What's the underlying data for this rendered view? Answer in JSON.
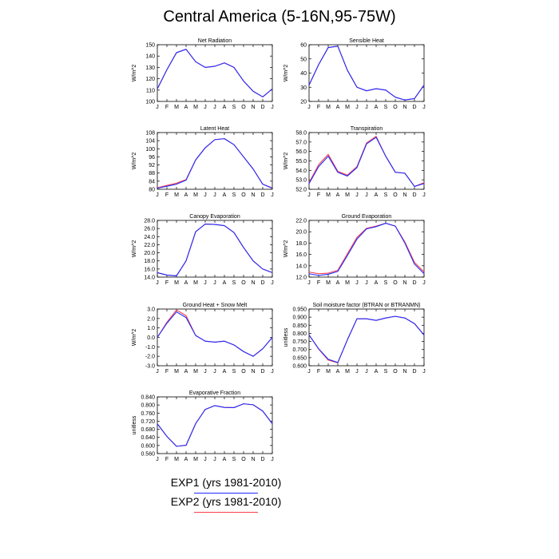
{
  "title": "Central America (5-16N,95-75W)",
  "legend": [
    {
      "label": "EXP1 (yrs 1981-2010)",
      "color": "#1e2bff"
    },
    {
      "label": "EXP2 (yrs 1981-2010)",
      "color": "#ff3a4a"
    }
  ],
  "chart_data": [
    {
      "type": "line",
      "title": "Net Radiation",
      "ylabel": "W/m^2",
      "categories": [
        "J",
        "F",
        "M",
        "A",
        "M",
        "J",
        "J",
        "A",
        "S",
        "O",
        "N",
        "D",
        "J"
      ],
      "yticks": [
        "100",
        "110",
        "120",
        "130",
        "140",
        "150"
      ],
      "ylim": [
        100,
        150
      ],
      "series": [
        {
          "name": "EXP1 (yrs 1981-2010)",
          "values": [
            111,
            128,
            143,
            146,
            135,
            130,
            131,
            134,
            130,
            118,
            109,
            104,
            111
          ]
        },
        {
          "name": "EXP2 (yrs 1981-2010)",
          "values": [
            111,
            128,
            143,
            146,
            135,
            130,
            131,
            134,
            130,
            118,
            109,
            104,
            111
          ]
        }
      ]
    },
    {
      "type": "line",
      "title": "Sensible Heat",
      "ylabel": "W/m^2",
      "categories": [
        "J",
        "F",
        "M",
        "A",
        "M",
        "J",
        "J",
        "A",
        "S",
        "O",
        "N",
        "D",
        "J"
      ],
      "yticks": [
        "20",
        "30",
        "40",
        "50",
        "60"
      ],
      "ylim": [
        20,
        60
      ],
      "series": [
        {
          "name": "EXP1 (yrs 1981-2010)",
          "values": [
            31.5,
            46,
            58,
            59,
            42,
            30,
            27.5,
            29,
            28,
            23,
            21,
            22,
            31.5
          ]
        },
        {
          "name": "EXP2 (yrs 1981-2010)",
          "values": [
            31.5,
            46,
            58,
            59,
            42,
            30,
            27.5,
            29,
            28,
            23,
            21,
            22,
            31.5
          ]
        }
      ]
    },
    {
      "type": "line",
      "title": "Latent Heat",
      "ylabel": "W/m^2",
      "categories": [
        "J",
        "F",
        "M",
        "A",
        "M",
        "J",
        "J",
        "A",
        "S",
        "O",
        "N",
        "D",
        "J"
      ],
      "yticks": [
        "80",
        "84",
        "88",
        "92",
        "96",
        "100",
        "104",
        "108"
      ],
      "ylim": [
        80,
        108
      ],
      "series": [
        {
          "name": "EXP1 (yrs 1981-2010)",
          "values": [
            80.5,
            81.5,
            82.5,
            84.5,
            94.5,
            100.5,
            104.5,
            105,
            102,
            96,
            90,
            82.5,
            80.5
          ]
        },
        {
          "name": "EXP2 (yrs 1981-2010)",
          "values": [
            80.7,
            81.9,
            83,
            84.8,
            94.5,
            100.5,
            104.5,
            105,
            102,
            96,
            90,
            82.5,
            80.7
          ]
        }
      ]
    },
    {
      "type": "line",
      "title": "Transpiration",
      "ylabel": "W/m^2",
      "categories": [
        "J",
        "F",
        "M",
        "A",
        "M",
        "J",
        "J",
        "A",
        "S",
        "O",
        "N",
        "D",
        "J"
      ],
      "yticks": [
        "52.0",
        "53.0",
        "54.0",
        "55.0",
        "56.0",
        "57.0",
        "58.0"
      ],
      "ylim": [
        52,
        58
      ],
      "series": [
        {
          "name": "EXP1 (yrs 1981-2010)",
          "values": [
            52.6,
            54.4,
            55.5,
            53.8,
            53.4,
            54.3,
            56.8,
            57.5,
            55.5,
            53.8,
            53.7,
            52.3,
            52.6
          ]
        },
        {
          "name": "EXP2 (yrs 1981-2010)",
          "values": [
            52.7,
            54.6,
            55.7,
            53.9,
            53.5,
            54.4,
            56.9,
            57.6,
            55.5,
            53.8,
            53.7,
            52.3,
            52.7
          ]
        }
      ]
    },
    {
      "type": "line",
      "title": "Canopy Evaporation",
      "ylabel": "W/m^2",
      "categories": [
        "J",
        "F",
        "M",
        "A",
        "M",
        "J",
        "J",
        "A",
        "S",
        "O",
        "N",
        "D",
        "J"
      ],
      "yticks": [
        "14.0",
        "16.0",
        "18.0",
        "20.0",
        "22.0",
        "24.0",
        "26.0",
        "28.0"
      ],
      "ylim": [
        14,
        28
      ],
      "series": [
        {
          "name": "EXP1 (yrs 1981-2010)",
          "values": [
            15.1,
            14.5,
            14.3,
            18.0,
            25.2,
            27.1,
            27.0,
            26.7,
            25.0,
            21.3,
            18.0,
            16.0,
            15.1
          ]
        },
        {
          "name": "EXP2 (yrs 1981-2010)",
          "values": [
            15.1,
            14.5,
            14.3,
            18.0,
            25.2,
            27.1,
            27.0,
            26.7,
            25.0,
            21.3,
            18.0,
            16.0,
            15.1
          ]
        }
      ]
    },
    {
      "type": "line",
      "title": "Ground Evaporation",
      "ylabel": "W/m^2",
      "categories": [
        "J",
        "F",
        "M",
        "A",
        "M",
        "J",
        "J",
        "A",
        "S",
        "O",
        "N",
        "D",
        "J"
      ],
      "yticks": [
        "12.0",
        "14.0",
        "16.0",
        "18.0",
        "20.0",
        "22.0"
      ],
      "ylim": [
        12,
        22
      ],
      "series": [
        {
          "name": "EXP1 (yrs 1981-2010)",
          "values": [
            12.6,
            12.3,
            12.5,
            13.0,
            15.8,
            18.7,
            20.5,
            20.9,
            21.5,
            21.0,
            18.0,
            14.3,
            12.6
          ]
        },
        {
          "name": "EXP2 (yrs 1981-2010)",
          "values": [
            12.9,
            12.6,
            12.7,
            13.2,
            16.1,
            19.0,
            20.6,
            21.0,
            21.5,
            21.0,
            18.2,
            14.6,
            12.9
          ]
        }
      ]
    },
    {
      "type": "line",
      "title": "Ground Heat + Snow Melt",
      "ylabel": "W/m^2",
      "categories": [
        "J",
        "F",
        "M",
        "A",
        "M",
        "J",
        "J",
        "A",
        "S",
        "O",
        "N",
        "D",
        "J"
      ],
      "yticks": [
        "-3.0",
        "-2.0",
        "-1.0",
        "0.0",
        "1.0",
        "2.0",
        "3.0"
      ],
      "ylim": [
        -3,
        3
      ],
      "series": [
        {
          "name": "EXP1 (yrs 1981-2010)",
          "values": [
            0.0,
            1.5,
            2.7,
            2.1,
            0.2,
            -0.4,
            -0.5,
            -0.4,
            -0.8,
            -1.5,
            -2.0,
            -1.2,
            0.0
          ]
        },
        {
          "name": "EXP2 (yrs 1981-2010)",
          "values": [
            0.0,
            1.6,
            2.9,
            2.3,
            0.2,
            -0.4,
            -0.5,
            -0.4,
            -0.8,
            -1.5,
            -2.0,
            -1.2,
            0.0
          ]
        }
      ]
    },
    {
      "type": "line",
      "title": "Soil moisture factor (BTRAN or BTRANMN)",
      "ylabel": "unitless",
      "categories": [
        "J",
        "F",
        "M",
        "A",
        "M",
        "J",
        "J",
        "A",
        "S",
        "O",
        "N",
        "D",
        "J"
      ],
      "yticks": [
        "0.600",
        "0.650",
        "0.700",
        "0.750",
        "0.800",
        "0.850",
        "0.900",
        "0.950"
      ],
      "ylim": [
        0.6,
        0.95
      ],
      "series": [
        {
          "name": "EXP1 (yrs 1981-2010)",
          "values": [
            0.79,
            0.705,
            0.64,
            0.62,
            0.76,
            0.89,
            0.89,
            0.88,
            0.895,
            0.905,
            0.895,
            0.86,
            0.79
          ]
        },
        {
          "name": "EXP2 (yrs 1981-2010)",
          "values": [
            0.79,
            0.703,
            0.635,
            0.618,
            0.76,
            0.89,
            0.89,
            0.88,
            0.895,
            0.905,
            0.895,
            0.86,
            0.79
          ]
        }
      ]
    },
    {
      "type": "line",
      "title": "Evaporative Fraction",
      "ylabel": "unitless",
      "categories": [
        "J",
        "F",
        "M",
        "A",
        "M",
        "J",
        "J",
        "A",
        "S",
        "O",
        "N",
        "D",
        "J"
      ],
      "yticks": [
        "0.560",
        "0.600",
        "0.640",
        "0.680",
        "0.720",
        "0.760",
        "0.800",
        "0.840"
      ],
      "ylim": [
        0.56,
        0.84
      ],
      "series": [
        {
          "name": "EXP1 (yrs 1981-2010)",
          "values": [
            0.707,
            0.645,
            0.596,
            0.601,
            0.708,
            0.778,
            0.797,
            0.788,
            0.787,
            0.806,
            0.801,
            0.77,
            0.707
          ]
        },
        {
          "name": "EXP2 (yrs 1981-2010)",
          "values": [
            0.707,
            0.645,
            0.596,
            0.601,
            0.708,
            0.778,
            0.797,
            0.788,
            0.787,
            0.806,
            0.801,
            0.77,
            0.707
          ]
        }
      ]
    }
  ]
}
